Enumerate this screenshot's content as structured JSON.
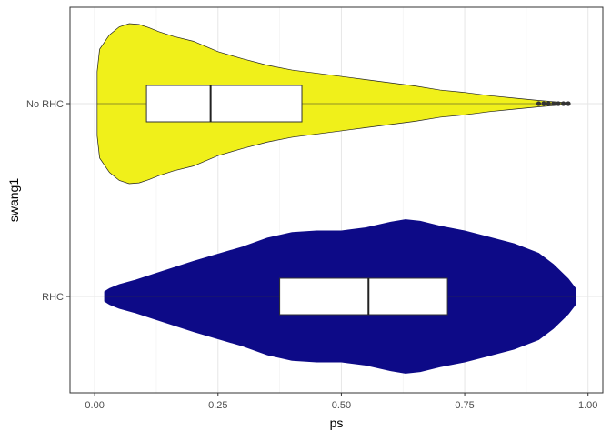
{
  "chart_data": {
    "type": "violin",
    "title": "",
    "xlabel": "ps",
    "ylabel": "swang1",
    "xlim": [
      -0.05,
      1.03
    ],
    "x_ticks": [
      0.0,
      0.25,
      0.5,
      0.75,
      1.0
    ],
    "x_tick_labels": [
      "0.00",
      "0.25",
      "0.50",
      "0.75",
      "1.00"
    ],
    "categories": [
      "No RHC",
      "RHC"
    ],
    "grid": true,
    "legend": "none",
    "series": [
      {
        "category": "No RHC",
        "fill": "#f0f01a",
        "outline": "#222222",
        "box": {
          "q1": 0.105,
          "median": 0.235,
          "q3": 0.42,
          "min": 0.005,
          "max": 0.895
        },
        "outliers": [
          0.9,
          0.91,
          0.92,
          0.93,
          0.94,
          0.95,
          0.96
        ],
        "violin": [
          [
            0.005,
            0.4
          ],
          [
            0.01,
            0.68
          ],
          [
            0.03,
            0.86
          ],
          [
            0.05,
            0.96
          ],
          [
            0.07,
            1.0
          ],
          [
            0.09,
            0.99
          ],
          [
            0.11,
            0.95
          ],
          [
            0.13,
            0.9
          ],
          [
            0.16,
            0.84
          ],
          [
            0.2,
            0.78
          ],
          [
            0.25,
            0.65
          ],
          [
            0.3,
            0.56
          ],
          [
            0.35,
            0.48
          ],
          [
            0.4,
            0.42
          ],
          [
            0.45,
            0.38
          ],
          [
            0.5,
            0.34
          ],
          [
            0.55,
            0.3
          ],
          [
            0.6,
            0.26
          ],
          [
            0.65,
            0.22
          ],
          [
            0.7,
            0.17
          ],
          [
            0.75,
            0.14
          ],
          [
            0.8,
            0.1
          ],
          [
            0.85,
            0.07
          ],
          [
            0.9,
            0.04
          ],
          [
            0.93,
            0.025
          ],
          [
            0.96,
            0.01
          ]
        ]
      },
      {
        "category": "RHC",
        "fill": "#0d0a87",
        "outline": "#0d0a87",
        "box": {
          "q1": 0.375,
          "median": 0.555,
          "q3": 0.715,
          "min": 0.02,
          "max": 0.975
        },
        "outliers": [],
        "violin": [
          [
            0.02,
            0.06
          ],
          [
            0.03,
            0.1
          ],
          [
            0.05,
            0.15
          ],
          [
            0.08,
            0.2
          ],
          [
            0.12,
            0.28
          ],
          [
            0.16,
            0.36
          ],
          [
            0.2,
            0.44
          ],
          [
            0.25,
            0.53
          ],
          [
            0.3,
            0.62
          ],
          [
            0.35,
            0.73
          ],
          [
            0.4,
            0.8
          ],
          [
            0.45,
            0.82
          ],
          [
            0.5,
            0.82
          ],
          [
            0.55,
            0.86
          ],
          [
            0.6,
            0.93
          ],
          [
            0.63,
            0.96
          ],
          [
            0.66,
            0.94
          ],
          [
            0.7,
            0.88
          ],
          [
            0.75,
            0.82
          ],
          [
            0.8,
            0.74
          ],
          [
            0.85,
            0.66
          ],
          [
            0.9,
            0.54
          ],
          [
            0.93,
            0.4
          ],
          [
            0.96,
            0.22
          ],
          [
            0.975,
            0.1
          ]
        ]
      }
    ]
  }
}
